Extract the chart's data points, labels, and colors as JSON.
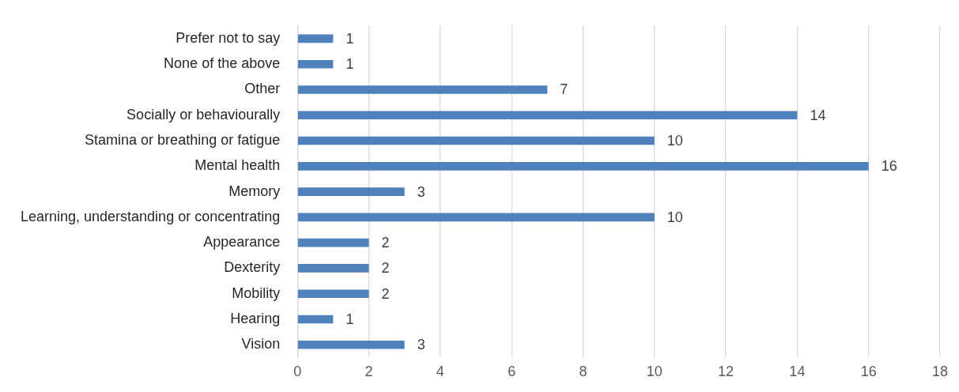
{
  "chart_data": {
    "type": "bar",
    "orientation": "horizontal",
    "categories": [
      "Prefer not to say",
      "None of the above",
      "Other",
      "Socially or behaviourally",
      "Stamina or breathing or fatigue",
      "Mental health",
      "Memory",
      "Learning, understanding or concentrating",
      "Appearance",
      "Dexterity",
      "Mobility",
      "Hearing",
      "Vision"
    ],
    "values": [
      1,
      1,
      7,
      14,
      10,
      16,
      3,
      10,
      2,
      2,
      2,
      1,
      3
    ],
    "color": "#4f81bd",
    "xlim": [
      0,
      18
    ],
    "xticks": [
      0,
      2,
      4,
      6,
      8,
      10,
      12,
      14,
      16,
      18
    ],
    "grid": "x",
    "data_labels": true,
    "legend": false
  }
}
